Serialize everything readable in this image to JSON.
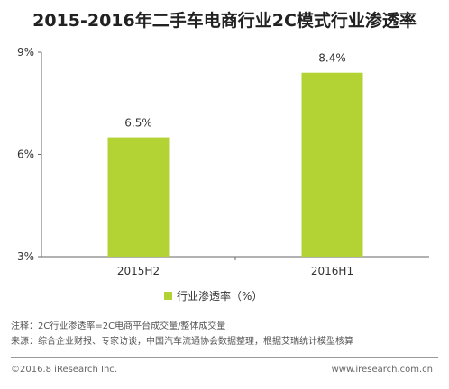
{
  "title": "2015-2016年二手车电商行业2C模式行业渗透率",
  "legend": {
    "label": "行业渗透率（%）",
    "color": "#b3d234"
  },
  "notes": {
    "note": "注释：2C行业渗透率=2C电商平台成交量/整体成交量",
    "source": "来源：综合企业财报、专家访谈，中国汽车流通协会数据整理，根据艾瑞统计模型核算"
  },
  "footer": {
    "copyright": "©2016.8 iResearch Inc.",
    "website": "www.iresearch.com.cn"
  },
  "chart_data": {
    "type": "bar",
    "categories": [
      "2015H2",
      "2016H1"
    ],
    "series": [
      {
        "name": "行业渗透率（%）",
        "values": [
          6.5,
          8.4
        ],
        "labels": [
          "6.5%",
          "8.4%"
        ]
      }
    ],
    "ylim": [
      3,
      9
    ],
    "yticks": [
      3,
      6,
      9
    ],
    "ytick_labels": [
      "3%",
      "6%",
      "9%"
    ],
    "bar_color": "#b3d234",
    "grid": false
  }
}
